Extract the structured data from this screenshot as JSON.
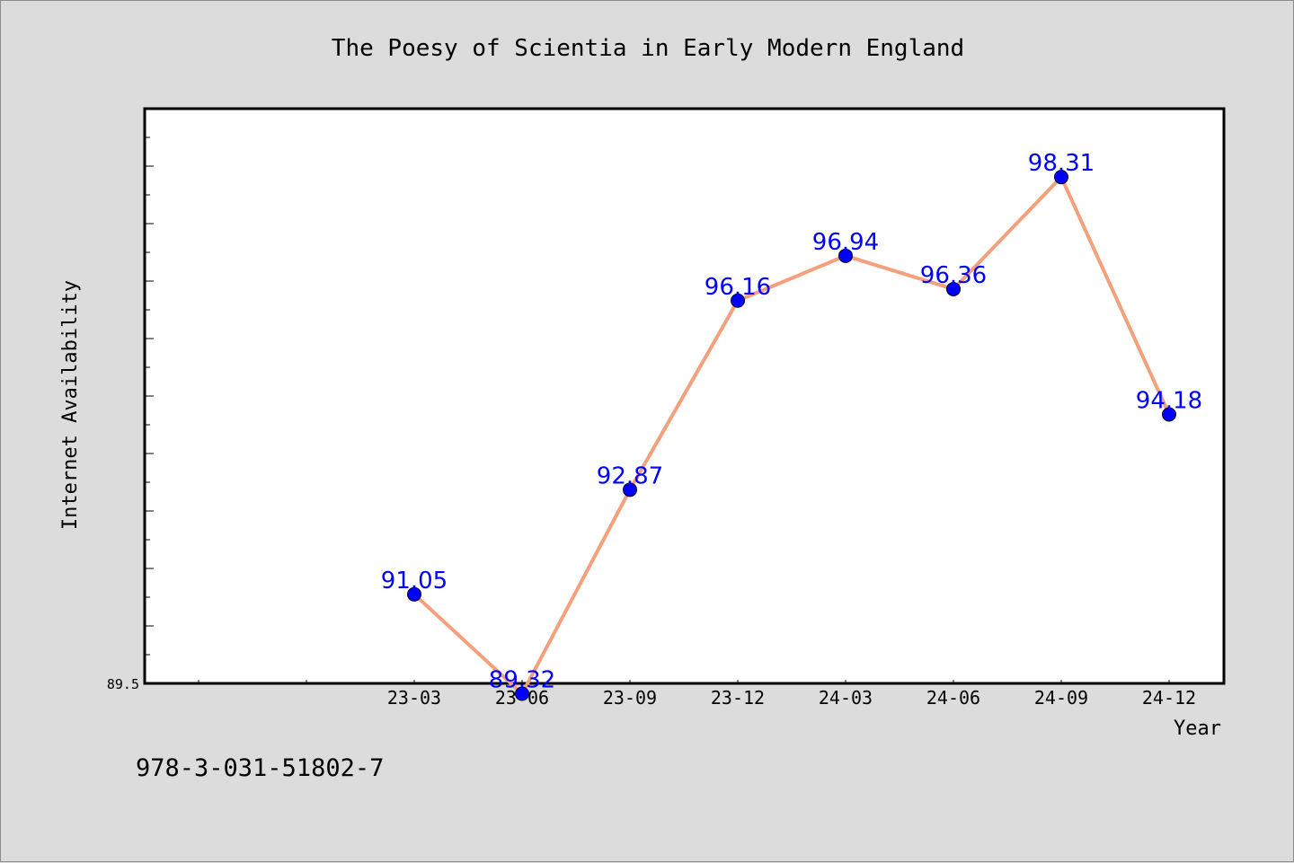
{
  "footer_text": "978-3-031-51802-7",
  "colors": {
    "background": "#dcdcdc",
    "plot_background": "#ffffff",
    "line": "#f4a07c",
    "marker": "#0000ff",
    "data_label": "#0000ff"
  },
  "chart_data": {
    "type": "line",
    "title": "The Poesy of Scientia in Early Modern England",
    "xlabel": "Year",
    "ylabel": "Internet Availability",
    "x": [
      "23-03",
      "23-06",
      "23-09",
      "23-12",
      "24-03",
      "24-06",
      "24-09",
      "24-12"
    ],
    "series": [
      {
        "values": [
          91.05,
          89.32,
          92.87,
          96.16,
          96.94,
          96.36,
          98.31,
          94.18
        ]
      }
    ],
    "data_labels": [
      "91.05",
      "89.32",
      "92.87",
      "96.16",
      "96.94",
      "96.36",
      "98.31",
      "94.18"
    ],
    "ylim": [
      89.5,
      99.5
    ],
    "ytick_labels": [
      "89.5"
    ],
    "grid": false,
    "legend": "none"
  }
}
